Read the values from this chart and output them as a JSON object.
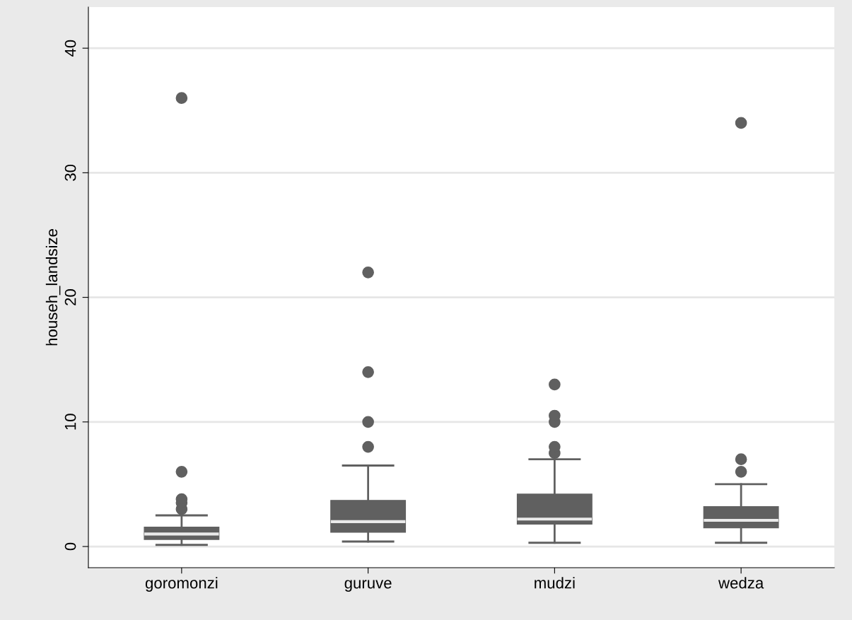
{
  "chart_data": {
    "type": "box",
    "ylabel": "househ_landsize",
    "categories": [
      "goromonzi",
      "guruve",
      "mudzi",
      "wedza"
    ],
    "boxes": [
      {
        "low": 0.13,
        "q1": 0.57,
        "median": 1.0,
        "q3": 1.55,
        "high": 2.5,
        "outliers": [
          3,
          3.5,
          3.8,
          6,
          36
        ]
      },
      {
        "low": 0.4,
        "q1": 1.15,
        "median": 2.0,
        "q3": 3.7,
        "high": 6.5,
        "outliers": [
          8,
          10,
          14,
          22
        ]
      },
      {
        "low": 0.3,
        "q1": 1.8,
        "median": 2.2,
        "q3": 4.2,
        "high": 7.0,
        "outliers": [
          7.5,
          8,
          10,
          10.5,
          13
        ]
      },
      {
        "low": 0.3,
        "q1": 1.5,
        "median": 2.1,
        "q3": 3.2,
        "high": 5.0,
        "outliers": [
          6,
          7,
          34
        ]
      }
    ],
    "color": "#606060",
    "ylim": [
      -1.7,
      43.3
    ],
    "yticks": [
      0,
      10,
      20,
      30,
      40
    ],
    "grid": "y"
  }
}
